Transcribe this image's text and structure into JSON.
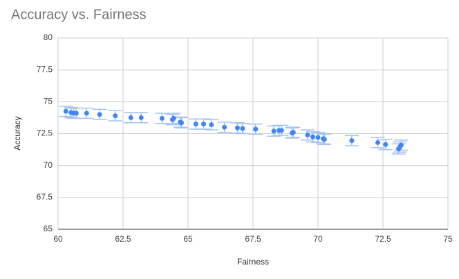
{
  "chart_data": {
    "type": "scatter",
    "title": "Accuracy vs. Fairness",
    "x_label": "Fairness",
    "y_label": "Accuracy",
    "x": [
      60.3,
      60.5,
      60.6,
      60.7,
      61.1,
      61.6,
      62.2,
      62.8,
      63.2,
      64.0,
      64.4,
      64.45,
      64.7,
      64.75,
      65.3,
      65.6,
      65.9,
      66.4,
      66.9,
      67.1,
      67.6,
      68.3,
      68.5,
      68.6,
      69.0,
      69.05,
      69.6,
      69.8,
      70.0,
      70.2,
      70.25,
      71.3,
      72.3,
      72.6,
      73.1,
      73.15,
      73.2
    ],
    "y": [
      74.25,
      74.15,
      74.1,
      74.1,
      74.1,
      74.0,
      73.9,
      73.75,
      73.75,
      73.7,
      73.6,
      73.7,
      73.4,
      73.35,
      73.25,
      73.25,
      73.2,
      73.0,
      72.95,
      72.9,
      72.85,
      72.7,
      72.75,
      72.75,
      72.55,
      72.6,
      72.4,
      72.25,
      72.2,
      72.1,
      72.05,
      71.95,
      71.8,
      71.65,
      71.3,
      71.45,
      71.6
    ],
    "errors": [
      0.4,
      0.4,
      0.4,
      0.4,
      0.4,
      0.4,
      0.4,
      0.4,
      0.4,
      0.4,
      0.4,
      0.4,
      0.4,
      0.4,
      0.4,
      0.4,
      0.4,
      0.4,
      0.4,
      0.4,
      0.4,
      0.4,
      0.4,
      0.4,
      0.4,
      0.4,
      0.4,
      0.4,
      0.4,
      0.4,
      0.4,
      0.4,
      0.4,
      0.4,
      0.4,
      0.4,
      0.4
    ],
    "color": "#4285f4",
    "error_color": "#a4c2f4",
    "xlim": [
      60,
      75
    ],
    "ylim": [
      65,
      80
    ],
    "xticks": [
      60,
      62.5,
      65,
      67.5,
      70,
      72.5,
      75
    ],
    "yticks": [
      65,
      67.5,
      70,
      72.5,
      75,
      77.5,
      80
    ],
    "grid": true
  }
}
